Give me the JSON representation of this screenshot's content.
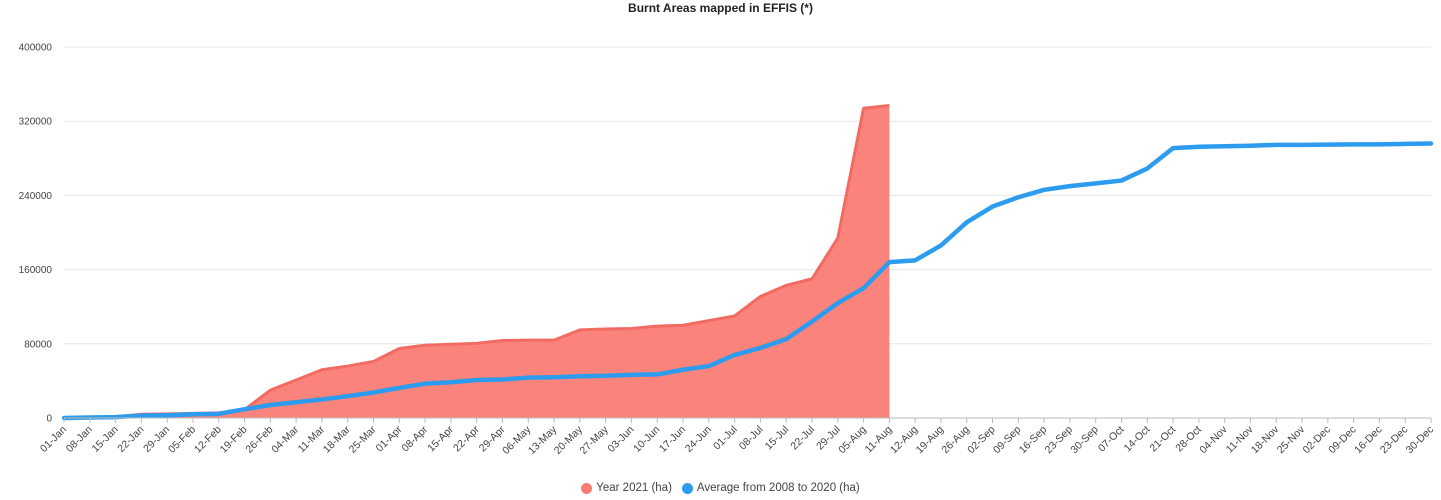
{
  "chart_data": {
    "type": "area",
    "title": "Burnt Areas mapped in EFFIS (*)",
    "xlabel": "",
    "ylabel": "",
    "ylim": [
      0,
      400000
    ],
    "y_ticks": [
      "0",
      "80000",
      "160000",
      "240000",
      "320000",
      "400000"
    ],
    "grid": true,
    "legend_position": "bottom-center",
    "x": [
      "01-Jan",
      "08-Jan",
      "15-Jan",
      "22-Jan",
      "29-Jan",
      "05-Feb",
      "12-Feb",
      "19-Feb",
      "26-Feb",
      "04-Mar",
      "11-Mar",
      "18-Mar",
      "25-Mar",
      "01-Apr",
      "08-Apr",
      "15-Apr",
      "22-Apr",
      "29-Apr",
      "06-May",
      "13-May",
      "20-May",
      "27-May",
      "03-Jun",
      "10-Jun",
      "17-Jun",
      "24-Jun",
      "01-Jul",
      "08-Jul",
      "15-Jul",
      "22-Jul",
      "29-Jul",
      "05-Aug",
      "11-Aug",
      "12-Aug",
      "19-Aug",
      "26-Aug",
      "02-Sep",
      "09-Sep",
      "16-Sep",
      "23-Sep",
      "30-Sep",
      "07-Oct",
      "14-Oct",
      "21-Oct",
      "28-Oct",
      "04-Nov",
      "11-Nov",
      "18-Nov",
      "25-Nov",
      "02-Dec",
      "09-Dec",
      "16-Dec",
      "23-Dec",
      "30-Dec"
    ],
    "series": [
      {
        "name": "Year 2021 (ha)",
        "type": "area",
        "color": "#fa7c74",
        "values": [
          0,
          500,
          1500,
          4000,
          4500,
          5000,
          5500,
          9000,
          30000,
          41000,
          52000,
          56000,
          61000,
          75000,
          78500,
          79500,
          80500,
          83500,
          84000,
          84000,
          95000,
          96000,
          96500,
          99000,
          100000,
          105000,
          110000,
          131000,
          143000,
          150000,
          194000,
          334000,
          337000,
          null,
          null,
          null,
          null,
          null,
          null,
          null,
          null,
          null,
          null,
          null,
          null,
          null,
          null,
          null,
          null,
          null,
          null,
          null,
          null,
          null
        ]
      },
      {
        "name": "Average from 2008 to 2020 (ha)",
        "type": "line",
        "color": "#2d9cee",
        "values": [
          0,
          500,
          1000,
          2500,
          3000,
          4000,
          4500,
          9500,
          14000,
          17000,
          20000,
          23500,
          27500,
          32500,
          37000,
          38500,
          41000,
          41500,
          43500,
          44000,
          45000,
          45500,
          46500,
          47000,
          52000,
          56000,
          68000,
          75500,
          85000,
          104000,
          124000,
          140000,
          168000,
          170000,
          186000,
          211000,
          228000,
          238000,
          246000,
          250000,
          253000,
          256000,
          269000,
          291000,
          292500,
          293000,
          293500,
          294500,
          294500,
          294800,
          295000,
          295000,
          295500,
          296000
        ]
      }
    ]
  },
  "legend": {
    "items": [
      {
        "label": "Year 2021 (ha)",
        "color": "#fa7c74"
      },
      {
        "label": "Average from 2008 to 2020 (ha)",
        "color": "#2d9cee"
      }
    ]
  }
}
